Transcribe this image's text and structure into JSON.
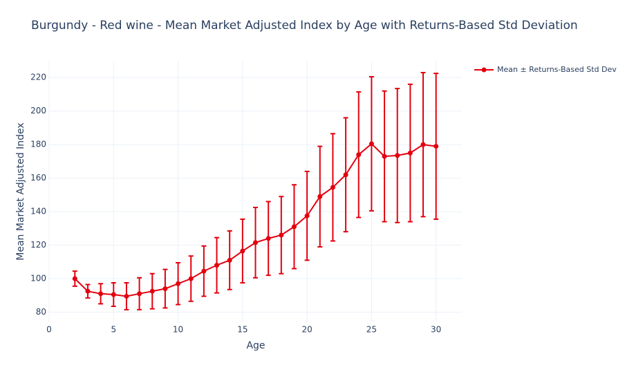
{
  "chart_data": {
    "type": "line",
    "title": "Burgundy - Red wine - Mean Market Adjusted Index by Age with Returns-Based Std Deviation",
    "x_label": "Age",
    "y_label": "Mean Market Adjusted Index",
    "x": [
      2,
      3,
      4,
      5,
      6,
      7,
      8,
      9,
      10,
      11,
      12,
      13,
      14,
      15,
      16,
      17,
      18,
      19,
      20,
      21,
      22,
      23,
      24,
      25,
      26,
      27,
      28,
      29,
      30
    ],
    "series": [
      {
        "name": "Mean ± Returns-Based Std Dev",
        "color": "#e3000f",
        "values": [
          100,
          92.5,
          91,
          90.5,
          89.5,
          91,
          92.5,
          94,
          97,
          100,
          104.5,
          108,
          111,
          116.5,
          121.5,
          124,
          126,
          131,
          137.5,
          149,
          154.5,
          162,
          174,
          180.5,
          173,
          173.5,
          175,
          180,
          179
        ],
        "errors": [
          4.5,
          4,
          6,
          7,
          8,
          9.5,
          10.5,
          11.5,
          12.5,
          13.5,
          15,
          16.5,
          17.5,
          19,
          21,
          22,
          23,
          25,
          26.5,
          30,
          32,
          34,
          37.5,
          40,
          39,
          40,
          41,
          43,
          43.5
        ]
      }
    ],
    "xlim": [
      0,
      32
    ],
    "ylim": [
      74,
      230
    ],
    "xticks": [
      0,
      5,
      10,
      15,
      20,
      25,
      30
    ],
    "yticks": [
      80,
      100,
      120,
      140,
      160,
      180,
      200,
      220
    ],
    "grid": true,
    "legend": "top-right"
  }
}
